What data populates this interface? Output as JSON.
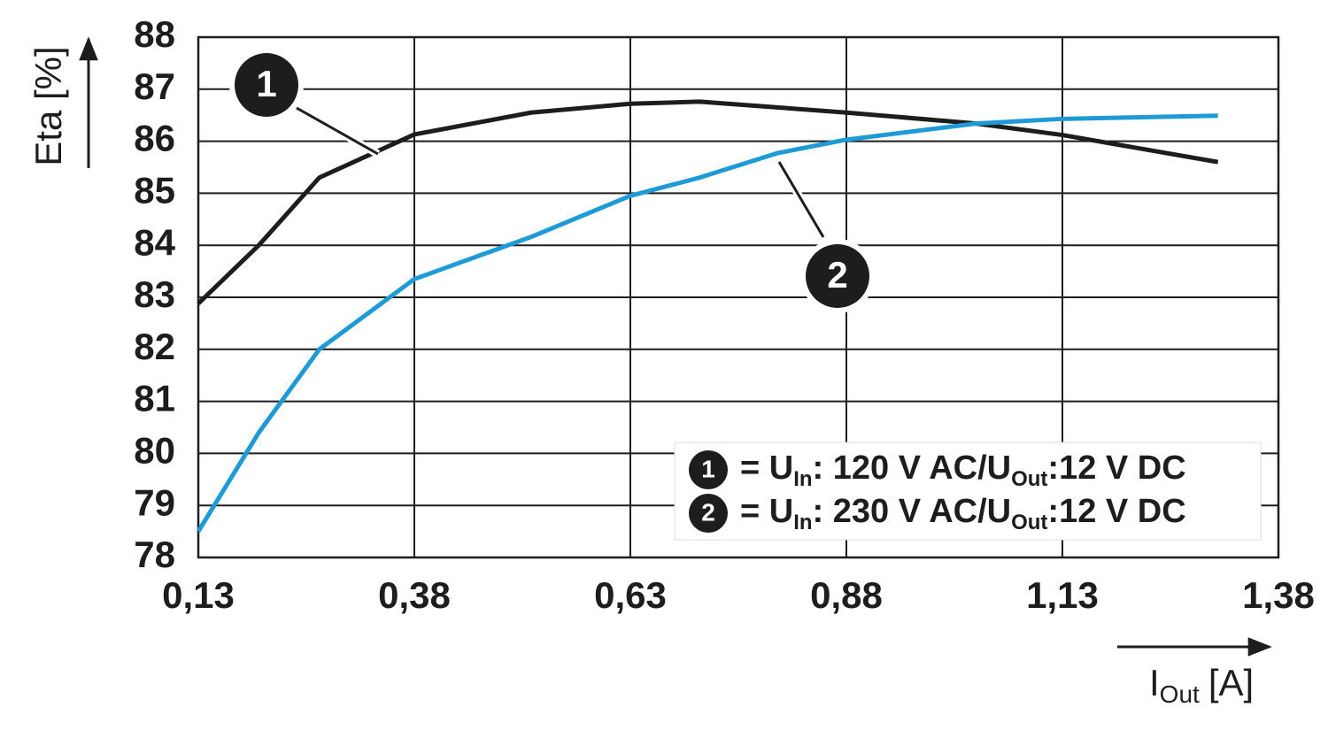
{
  "chart_data": {
    "type": "line",
    "y_label": "Eta [%]",
    "x_label": [
      "I",
      "Out",
      "[A]"
    ],
    "x": [
      0.13,
      0.2,
      0.27,
      0.38,
      0.515,
      0.63,
      0.71,
      0.8,
      0.88,
      1.03,
      1.13,
      1.31
    ],
    "series": [
      {
        "label": "1",
        "color": "#1d1d1b",
        "legend": [
          "= U",
          "In",
          ": 120 V AC/U",
          "Out",
          ":12 V DC"
        ],
        "values": [
          82.88,
          84.0,
          85.3,
          86.13,
          86.55,
          86.72,
          86.76,
          86.65,
          86.55,
          86.34,
          86.12,
          85.6
        ]
      },
      {
        "label": "2",
        "color": "#1e9bd7",
        "legend": [
          "= U",
          "In",
          ": 230 V AC/U",
          "Out",
          ":12 V DC"
        ],
        "values": [
          78.5,
          80.4,
          82.0,
          83.35,
          84.16,
          84.95,
          85.3,
          85.77,
          86.03,
          86.34,
          86.43,
          86.49
        ]
      }
    ],
    "xlim": [
      0.13,
      1.38
    ],
    "xticks": [
      {
        "value": 0.13,
        "label": "0,13"
      },
      {
        "value": 0.38,
        "label": "0,38"
      },
      {
        "value": 0.63,
        "label": "0,63"
      },
      {
        "value": 0.88,
        "label": "0,88"
      },
      {
        "value": 1.13,
        "label": "1,13"
      },
      {
        "value": 1.38,
        "label": "1,38"
      }
    ],
    "ylim": [
      78,
      88
    ],
    "yticks": [
      78,
      79,
      80,
      81,
      82,
      83,
      84,
      85,
      86,
      87,
      88
    ],
    "grid": true
  }
}
